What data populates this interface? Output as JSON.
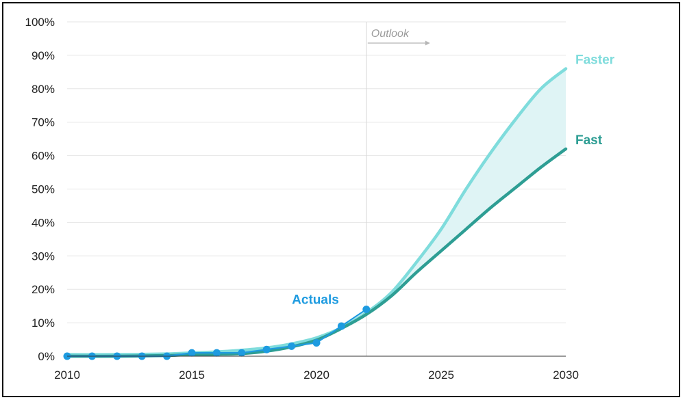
{
  "chart_data": {
    "type": "line",
    "xlim": [
      2010,
      2030
    ],
    "ylim": [
      0,
      100
    ],
    "x_ticks": [
      "2010",
      "2015",
      "2020",
      "2025",
      "2030"
    ],
    "y_ticks": [
      "0%",
      "10%",
      "20%",
      "30%",
      "40%",
      "50%",
      "60%",
      "70%",
      "80%",
      "90%",
      "100%"
    ],
    "grid": true,
    "divider_year": 2022,
    "outlook_label": "Outlook",
    "series": [
      {
        "name": "Actuals",
        "color": "#1e9be0",
        "x": [
          2010,
          2011,
          2012,
          2013,
          2014,
          2015,
          2016,
          2017,
          2018,
          2019,
          2020,
          2021,
          2022
        ],
        "values": [
          0,
          0,
          0,
          0,
          0,
          1,
          1,
          1,
          2,
          3,
          4,
          9,
          14
        ]
      },
      {
        "name": "Faster",
        "color": "#7fdcdc",
        "x": [
          2010,
          2012,
          2014,
          2015,
          2016,
          2017,
          2018,
          2019,
          2020,
          2021,
          2022,
          2023,
          2024,
          2025,
          2026,
          2027,
          2028,
          2029,
          2030
        ],
        "values": [
          0.5,
          0.5,
          0.7,
          1.0,
          1.3,
          1.8,
          2.5,
          3.7,
          5.5,
          8.5,
          13,
          19,
          28,
          38,
          50,
          61,
          71,
          80,
          86
        ]
      },
      {
        "name": "Fast",
        "color": "#2e9e94",
        "x": [
          2010,
          2012,
          2014,
          2015,
          2016,
          2017,
          2018,
          2019,
          2020,
          2021,
          2022,
          2023,
          2024,
          2025,
          2026,
          2027,
          2028,
          2029,
          2030
        ],
        "values": [
          0,
          0,
          0.2,
          0.5,
          0.6,
          0.8,
          1.5,
          2.8,
          4.8,
          8.3,
          12.5,
          18,
          25,
          31.5,
          38,
          44.5,
          50.5,
          56.5,
          62
        ]
      }
    ]
  }
}
